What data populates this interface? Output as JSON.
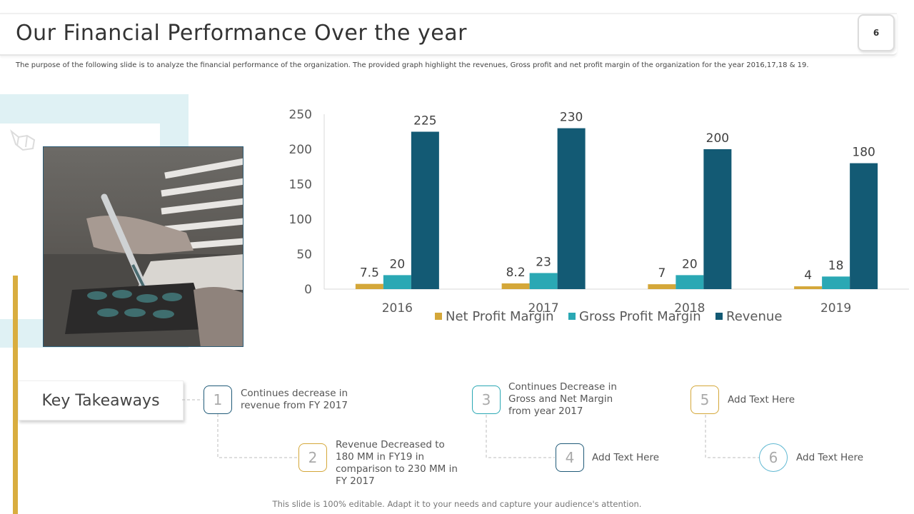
{
  "header": {
    "title": "Our Financial Performance Over the year",
    "page_number": "6",
    "subtitle": "The purpose of the following slide is to analyze the financial performance of the organization. The provided graph highlight the revenues, Gross profit and net profit margin of the organization for the year 2016,17,18 & 19."
  },
  "chart_data": {
    "type": "bar",
    "title": "",
    "xlabel": "",
    "ylabel": "",
    "ylim": [
      0,
      250
    ],
    "yticks": [
      0,
      50,
      100,
      150,
      200,
      250
    ],
    "categories": [
      "2016",
      "2017",
      "2018",
      "2019"
    ],
    "series": [
      {
        "name": "Net Profit Margin",
        "color": "#d4a739",
        "values": [
          7.5,
          8.2,
          7,
          4
        ]
      },
      {
        "name": "Gross Profit Margin",
        "color": "#2aa8b4",
        "values": [
          20,
          23,
          20,
          18
        ]
      },
      {
        "name": "Revenue",
        "color": "#135a74",
        "values": [
          225,
          230,
          200,
          180
        ]
      }
    ],
    "legend_position": "bottom"
  },
  "takeaways": {
    "heading": "Key Takeaways",
    "items": [
      {
        "number": "1",
        "text": "Continues decrease in revenue from FY 2017",
        "color": "#1f5a78"
      },
      {
        "number": "2",
        "text": "Revenue Decreased to 180 MM in FY19 in comparison to 230 MM in FY 2017",
        "color": "#d4a739"
      },
      {
        "number": "3",
        "text": "Continues Decrease in Gross and Net Margin from year 2017",
        "color": "#2aa8b4"
      },
      {
        "number": "4",
        "text": "Add Text Here",
        "color": "#1f5a78"
      },
      {
        "number": "5",
        "text": "Add Text Here",
        "color": "#d4a739"
      },
      {
        "number": "6",
        "text": "Add Text Here",
        "color": "#5fb8d2"
      }
    ]
  },
  "footer": {
    "note": "This slide is 100% editable. Adapt it to your needs and capture your audience's attention."
  }
}
